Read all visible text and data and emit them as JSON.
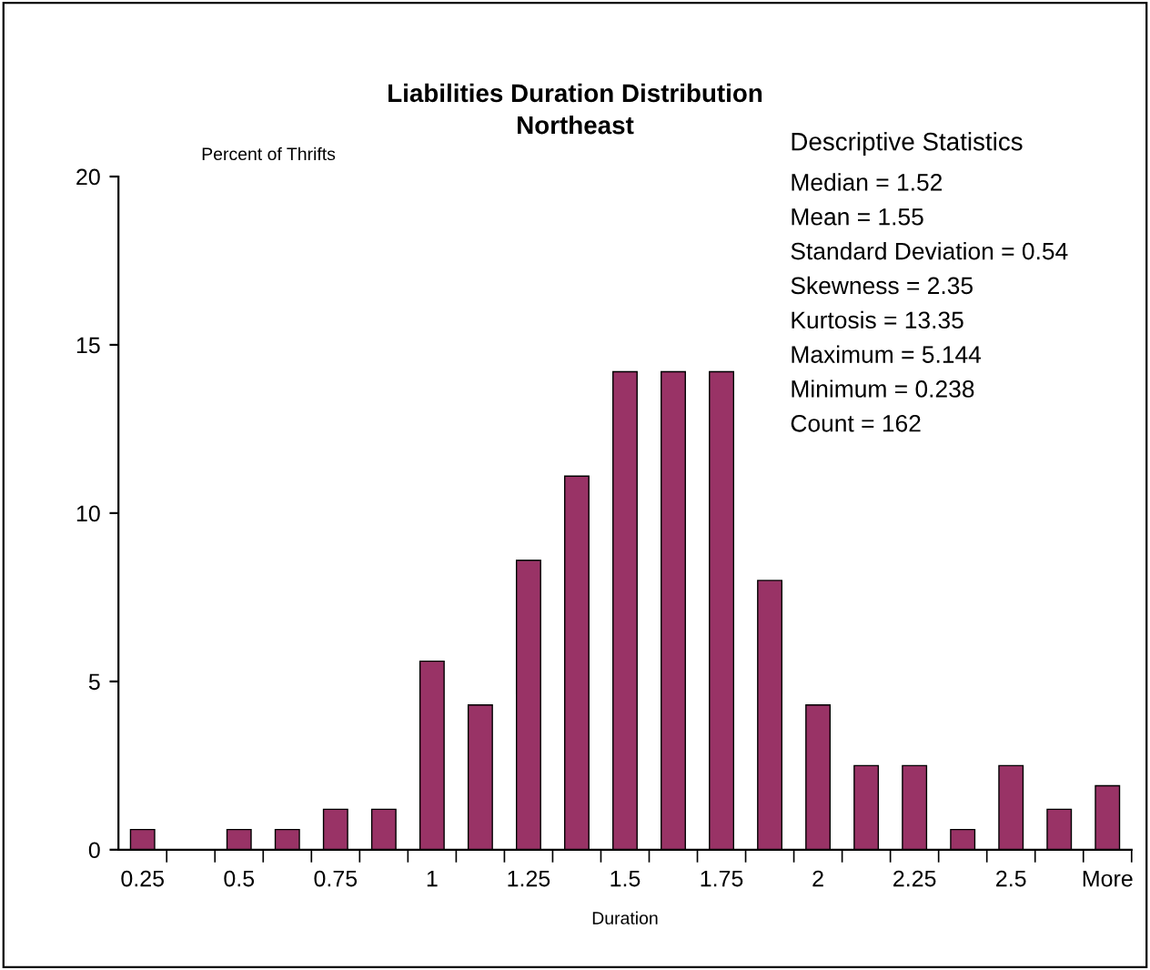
{
  "chart_data": {
    "type": "bar",
    "title": "Liabilities Duration Distribution",
    "subtitle": "Northeast",
    "xlabel": "Duration",
    "ylabel": "Percent of Thrifts",
    "categories": [
      "0.25",
      null,
      "0.5",
      null,
      "0.75",
      null,
      "1",
      null,
      "1.25",
      null,
      "1.5",
      null,
      "1.75",
      null,
      "2",
      null,
      "2.25",
      null,
      "2.5",
      null,
      "More"
    ],
    "values": [
      0.6,
      0,
      0.6,
      0.6,
      1.2,
      1.2,
      5.6,
      4.3,
      8.6,
      11.1,
      14.2,
      14.2,
      14.2,
      8.0,
      4.3,
      2.5,
      2.5,
      0.6,
      2.5,
      1.2,
      1.9
    ],
    "color": "#993366",
    "ylim": [
      0,
      20
    ],
    "yticks": [
      0,
      5,
      10,
      15,
      20
    ],
    "grid": false,
    "legend": false,
    "annotations": [
      "Descriptive Statistics",
      "Median = 1.52",
      "Mean = 1.55",
      "Standard Deviation = 0.54",
      "Skewness = 2.35",
      "Kurtosis = 13.35",
      "Maximum = 5.144",
      "Minimum = 0.238",
      "Count = 162"
    ]
  }
}
